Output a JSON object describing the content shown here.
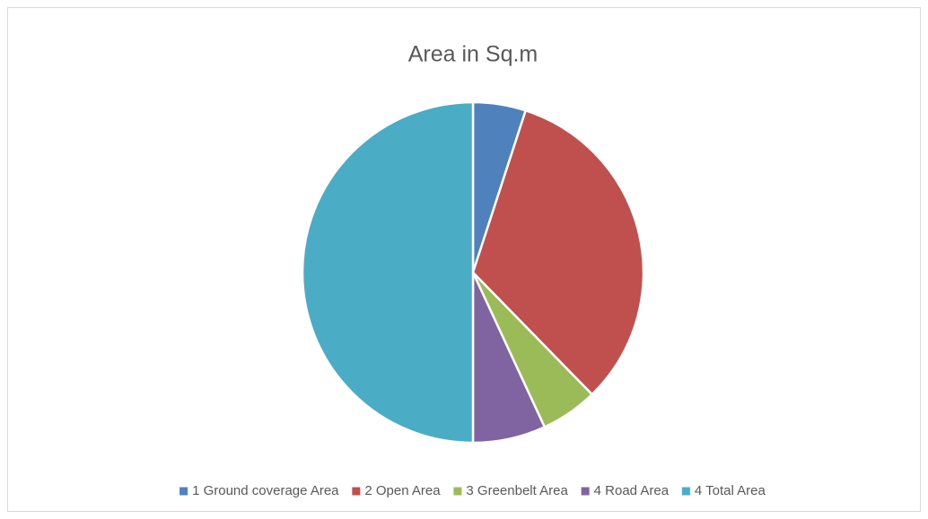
{
  "chart_data": {
    "type": "pie",
    "title": "Area in Sq.m",
    "categories": [
      "1 Ground coverage Area",
      "2 Open Area",
      "3 Greenbelt Area",
      "4 Road Area",
      "4 Total Area"
    ],
    "values": [
      5,
      32.7,
      5.4,
      6.9,
      50
    ],
    "colors": [
      "#4f81bd",
      "#c0504d",
      "#9bbb59",
      "#8064a2",
      "#4bacc6"
    ],
    "legend": "bottom"
  }
}
